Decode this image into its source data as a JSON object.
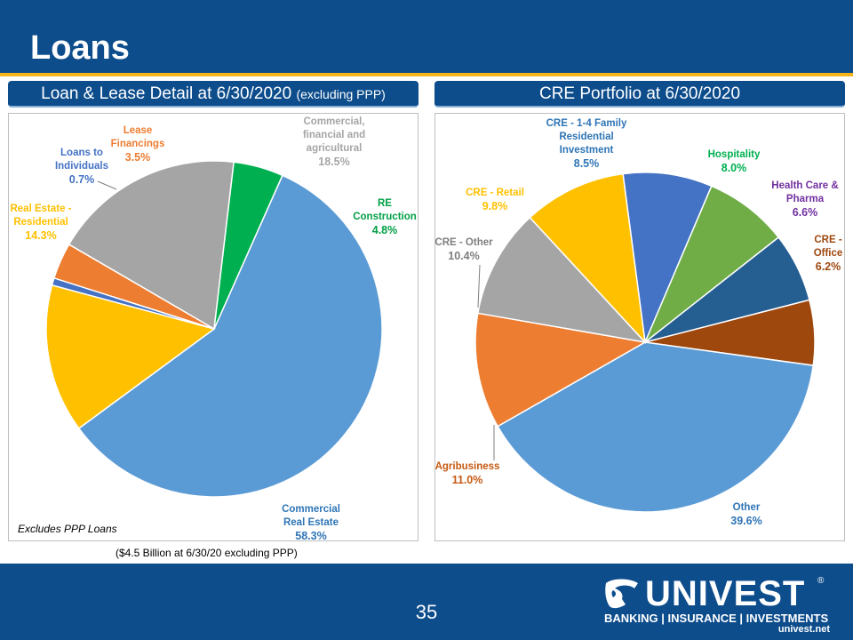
{
  "page": {
    "title": "Loans",
    "page_number": "35",
    "footnote": "Excludes PPP Loans",
    "caption": "($4.5 Billion at 6/30/20 excluding PPP)"
  },
  "left_panel": {
    "title_main": "Loan & Lease Detail at 6/30/2020",
    "title_sub": "(excluding PPP)"
  },
  "right_panel": {
    "title": "CRE Portfolio at 6/30/2020"
  },
  "logo": {
    "word": "UNIVEST",
    "reg": "®",
    "tagline": "BANKING | INSURANCE | INVESTMENTS",
    "url": "univest.net"
  },
  "colors": {
    "header": "#0d4d8c",
    "accent": "#f4b41a"
  },
  "chart_data": [
    {
      "type": "pie",
      "title": "Loan & Lease Detail at 6/30/2020 (excluding PPP)",
      "start": "Commercial Real Estate, clockwise from about 1 o'clock",
      "slices": [
        {
          "label": "Commercial Real Estate",
          "value": 58.3,
          "value_label": "58.3%",
          "color": "#5b9bd5"
        },
        {
          "label": "Real Estate - Residential",
          "value": 14.3,
          "value_label": "14.3%",
          "color": "#ffc000"
        },
        {
          "label": "Loans to Individuals",
          "value": 0.7,
          "value_label": "0.7%",
          "color": "#4472c4"
        },
        {
          "label": "Lease Financings",
          "value": 3.5,
          "value_label": "3.5%",
          "color": "#ed7d31"
        },
        {
          "label": "Commercial, financial and agricultural",
          "value": 18.5,
          "value_label": "18.5%",
          "color": "#a5a5a5"
        },
        {
          "label": "RE Construction",
          "value": 4.8,
          "value_label": "4.8%",
          "color": "#00b050"
        }
      ]
    },
    {
      "type": "pie",
      "title": "CRE Portfolio at 6/30/2020",
      "start": "CRE - 1-4 Family Residential Investment, clockwise from about 12 o'clock",
      "slices": [
        {
          "label": "CRE - 1-4 Family Residential Investment",
          "value": 8.5,
          "value_label": "8.5%",
          "color": "#4472c4"
        },
        {
          "label": "Hospitality",
          "value": 8.0,
          "value_label": "8.0%",
          "color": "#70ad47"
        },
        {
          "label": "Health Care & Pharma",
          "value": 6.6,
          "value_label": "6.6%",
          "color": "#255e91"
        },
        {
          "label": "CRE - Office",
          "value": 6.2,
          "value_label": "6.2%",
          "color": "#9e480e"
        },
        {
          "label": "Other",
          "value": 39.6,
          "value_label": "39.6%",
          "color": "#5b9bd5"
        },
        {
          "label": "Agribusiness",
          "value": 11.0,
          "value_label": "11.0%",
          "color": "#ed7d31"
        },
        {
          "label": "CRE - Other",
          "value": 10.4,
          "value_label": "10.4%",
          "color": "#a5a5a5"
        },
        {
          "label": "CRE - Retail",
          "value": 9.8,
          "value_label": "9.8%",
          "color": "#ffc000"
        }
      ]
    }
  ]
}
